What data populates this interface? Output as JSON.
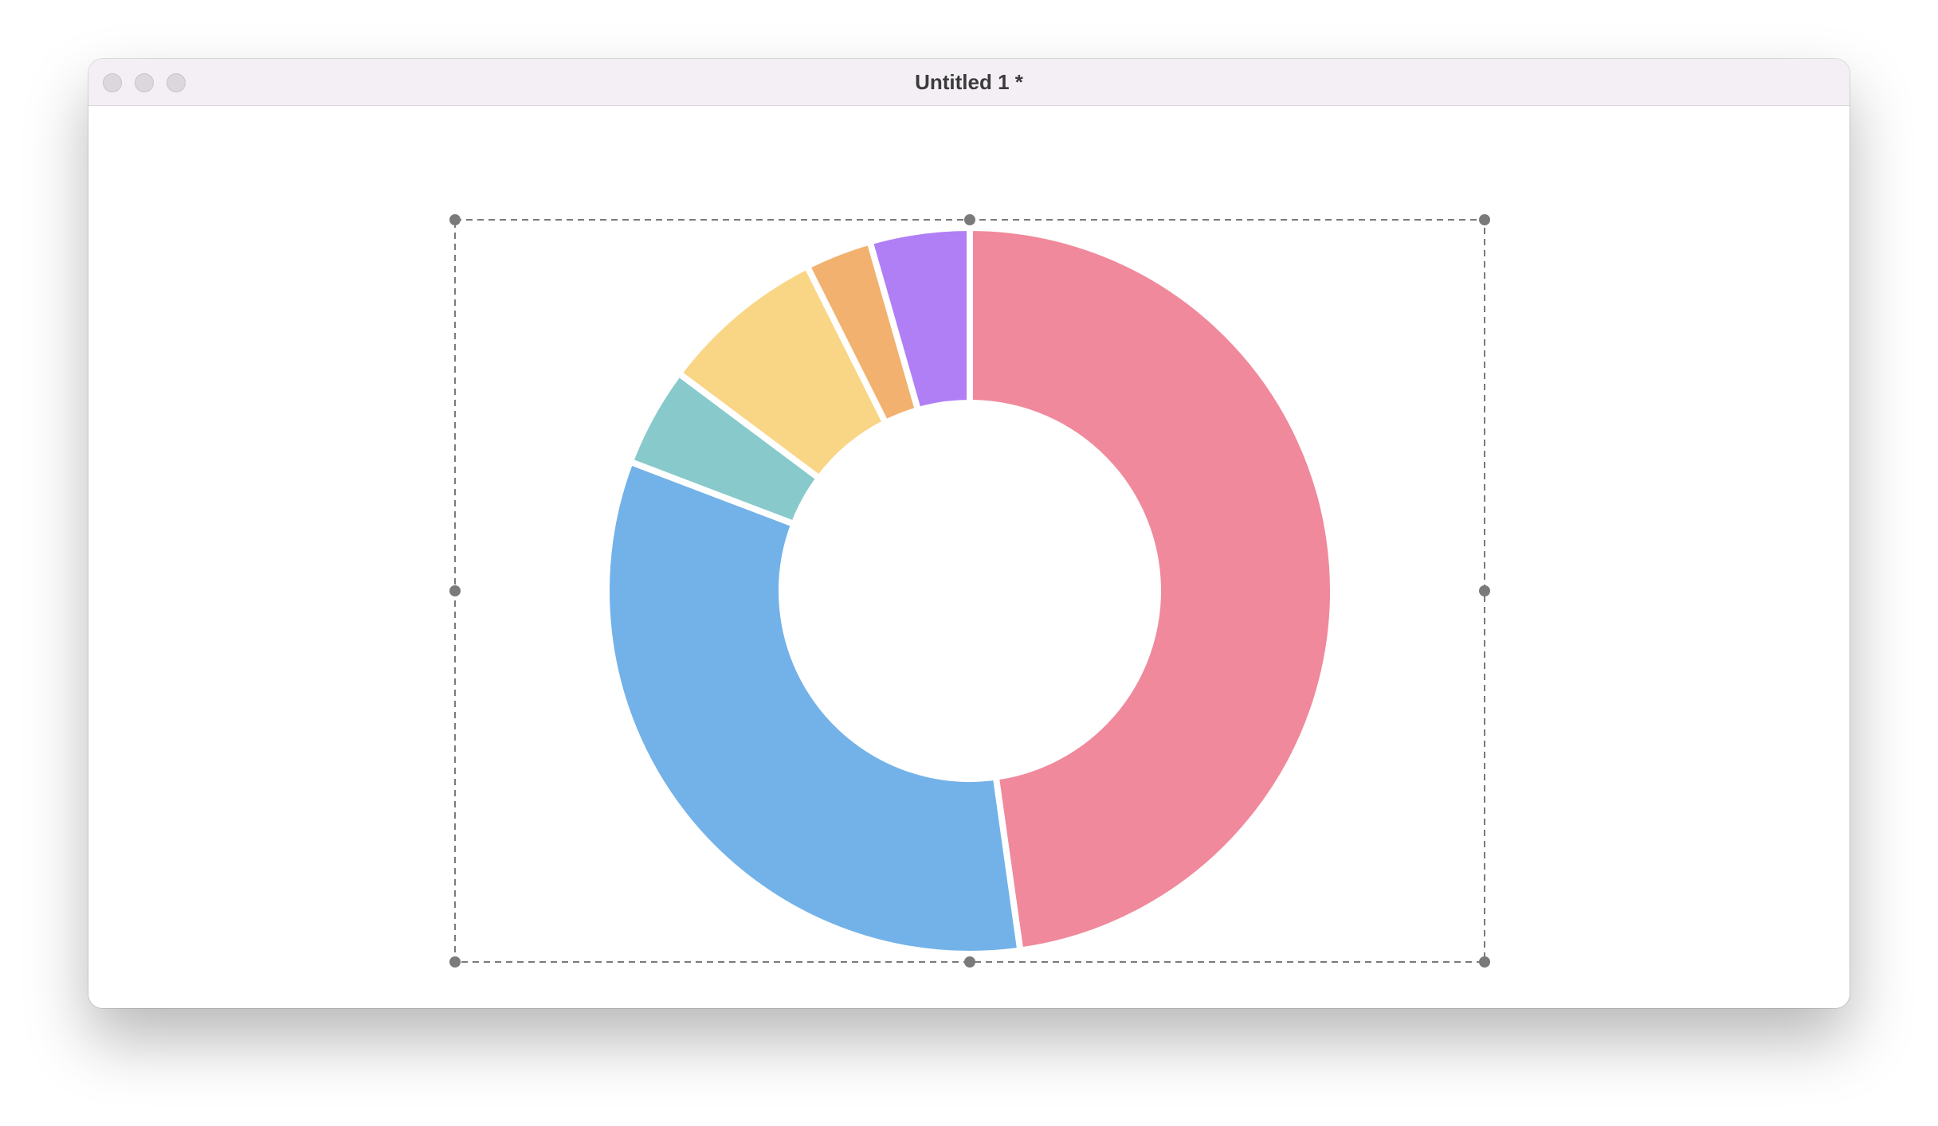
{
  "window": {
    "title": "Untitled 1 *"
  },
  "selection": {
    "style": "dashed",
    "handle_count": 8,
    "border_color": "#7a7a7a",
    "handle_color": "#7a7a7a"
  },
  "icons": {
    "close": "close-button-icon",
    "minimize": "minimize-button-icon",
    "zoom": "zoom-button-icon"
  },
  "chart_data": {
    "type": "pie",
    "variant": "donut",
    "title": "",
    "start": "top",
    "direction": "clockwise",
    "slices": [
      {
        "value": 48.5,
        "color": "#f0899b"
      },
      {
        "value": 33.5,
        "color": "#73b2e8"
      },
      {
        "value": 4.5,
        "color": "#88cacb"
      },
      {
        "value": 7.5,
        "color": "#f9d686"
      },
      {
        "value": 3.0,
        "color": "#f2b16e"
      },
      {
        "value": 4.5,
        "color": "#b07ff5"
      }
    ]
  }
}
